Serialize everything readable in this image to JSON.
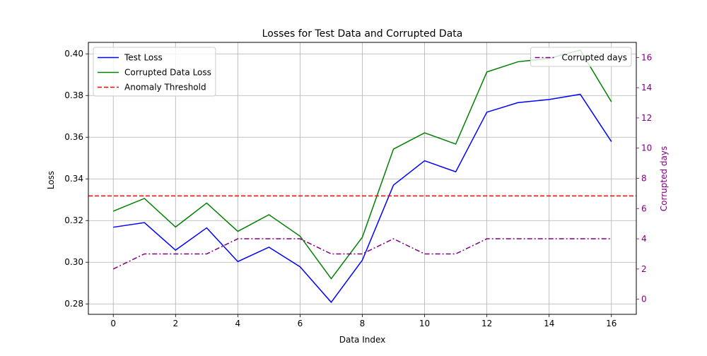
{
  "chart_data": {
    "type": "line",
    "title": "Losses for Test Data and Corrupted Data",
    "xlabel": "Data Index",
    "ylabel": "Loss",
    "y2label": "Corrupted days",
    "x": [
      0,
      1,
      2,
      3,
      4,
      5,
      6,
      7,
      8,
      9,
      10,
      11,
      12,
      13,
      14,
      15,
      16
    ],
    "xlim": [
      -0.8,
      16.8
    ],
    "ylim": [
      0.275,
      0.4055
    ],
    "y2lim": [
      -1,
      17
    ],
    "xticks": [
      0,
      2,
      4,
      6,
      8,
      10,
      12,
      14,
      16
    ],
    "yticks": [
      0.28,
      0.3,
      0.32,
      0.34,
      0.36,
      0.38,
      0.4
    ],
    "ytick_labels": [
      "0.28",
      "0.30",
      "0.32",
      "0.34",
      "0.36",
      "0.38",
      "0.40"
    ],
    "y2ticks": [
      0,
      2,
      4,
      6,
      8,
      10,
      12,
      14,
      16
    ],
    "grid": true,
    "series": [
      {
        "name": "Test Loss",
        "axis": "left",
        "color": "#0000ff",
        "style": "solid",
        "values": [
          0.3168,
          0.319,
          0.3058,
          0.3165,
          0.3003,
          0.3072,
          0.2978,
          0.2808,
          0.301,
          0.337,
          0.3487,
          0.3434,
          0.372,
          0.3766,
          0.3781,
          0.3806,
          0.3579
        ]
      },
      {
        "name": "Corrupted Data Loss",
        "axis": "left",
        "color": "#008000",
        "style": "solid",
        "values": [
          0.3245,
          0.3306,
          0.3169,
          0.3284,
          0.3148,
          0.3228,
          0.3125,
          0.2921,
          0.312,
          0.3543,
          0.3621,
          0.3567,
          0.3913,
          0.3962,
          0.3978,
          0.4018,
          0.377
        ]
      },
      {
        "name": "Anomaly Threshold",
        "axis": "left",
        "color": "#ff0000",
        "style": "dashed",
        "hline": 0.3318
      },
      {
        "name": "Corrupted days",
        "axis": "right",
        "color": "#800080",
        "style": "dashdot",
        "values": [
          2,
          3,
          3,
          3,
          4,
          4,
          4,
          3,
          3,
          4,
          3,
          3,
          4,
          4,
          4,
          4,
          4
        ]
      }
    ],
    "legends": [
      {
        "placement": "top-left",
        "entries": [
          "Test Loss",
          "Corrupted Data Loss",
          "Anomaly Threshold"
        ]
      },
      {
        "placement": "top-right",
        "entries": [
          "Corrupted days"
        ]
      }
    ],
    "colors": {
      "axis2": "#800080",
      "grid": "#b0b0b0",
      "spine": "#000000"
    }
  }
}
